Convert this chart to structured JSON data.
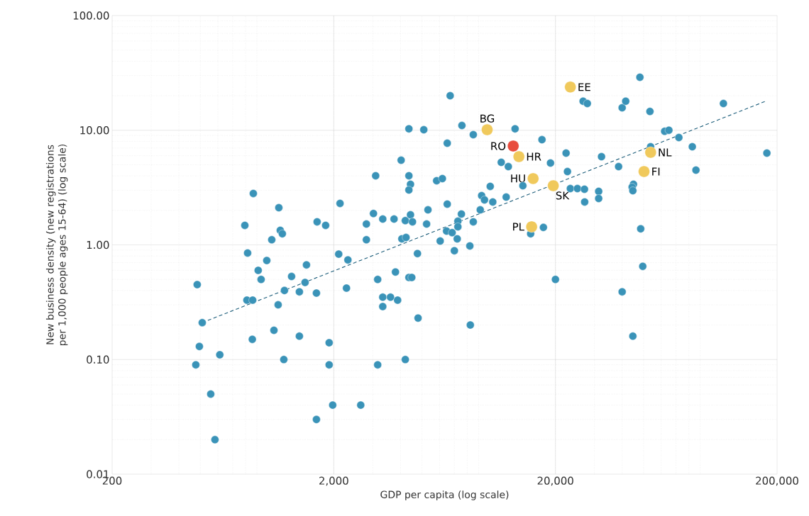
{
  "chart_data": {
    "type": "scatter",
    "xlabel": "GDP per capita (log scale)",
    "ylabel": "New business density (new registrations per 1,000 people ages 15-64) (log scale)",
    "log": "xy",
    "grid": true,
    "marker": "circle",
    "legend": false,
    "xlim": [
      200,
      200000
    ],
    "ylim": [
      0.01,
      100
    ],
    "xticks": [
      200,
      {
        "value": 2000,
        "label": "2,000"
      },
      {
        "value": 20000,
        "label": "20,000"
      },
      {
        "value": 200000,
        "label": "200,000"
      }
    ],
    "yticks": [
      {
        "value": 0.01,
        "label": "0.01"
      },
      {
        "value": 0.1,
        "label": "0.10"
      },
      {
        "value": 1,
        "label": "1.00"
      },
      {
        "value": 10,
        "label": "10.00"
      },
      {
        "value": 100,
        "label": "100.00"
      }
    ],
    "series": [
      {
        "color": "#3a93b8",
        "x": [
          484,
          510,
          495,
          477,
          557,
          612,
          582,
          794,
          817,
          867,
          811,
          861,
          858,
          912,
          940,
          997,
          1050,
          1074,
          1130,
          1122,
          1147,
          1172,
          1198,
          1190,
          1290,
          1399,
          1399,
          1484,
          1506,
          1670,
          1682,
          1670,
          1838,
          1906,
          1906,
          1978,
          2134,
          2105,
          2316,
          2282,
          2646,
          3020,
          3090,
          2806,
          2806,
          3155,
          3326,
          3326,
          3326,
          3155,
          3605,
          3740,
          3796,
          3882,
          4026,
          4055,
          4236,
          4204,
          4364,
          4364,
          4364,
          4204,
          4437,
          4364,
          4496,
          4437,
          4530,
          4770,
          4800,
          5094,
          5245,
          5320,
          5822,
          6180,
          6040,
          6455,
          6500,
          6500,
          6700,
          6840,
          7000,
          7210,
          7260,
          7260,
          7530,
          7570,
          8220,
          8260,
          8520,
          8520,
          9160,
          9290,
          9570,
          10160,
          10430,
          11390,
          11990,
          12260,
          13150,
          14260,
          15460,
          17390,
          17650,
          19000,
          20000,
          22340,
          22660,
          23350,
          25130,
          26660,
          27860,
          27040,
          27100,
          31340,
          31340,
          32280,
          38550,
          40000,
          41500,
          40000,
          44990,
          44370,
          44700,
          44700,
          48100,
          48500,
          49540,
          53380,
          53760,
          62200,
          65000,
          72100,
          82900,
          86100,
          114500,
          179900
        ],
        "values": [
          0.45,
          0.21,
          0.13,
          0.09,
          0.05,
          0.11,
          0.02,
          1.48,
          0.85,
          2.81,
          0.33,
          0.33,
          0.15,
          0.6,
          0.5,
          0.73,
          1.11,
          0.18,
          2.11,
          0.3,
          1.34,
          1.25,
          0.4,
          0.1,
          0.53,
          0.39,
          0.16,
          0.47,
          0.67,
          0.38,
          1.59,
          0.03,
          1.48,
          0.14,
          0.09,
          0.04,
          2.3,
          0.83,
          0.74,
          0.42,
          0.04,
          1.88,
          4.01,
          1.52,
          1.11,
          0.5,
          1.68,
          0.35,
          0.29,
          0.09,
          0.35,
          1.68,
          0.58,
          0.33,
          5.48,
          1.13,
          1.16,
          1.63,
          10.3,
          4.01,
          0.52,
          0.1,
          3.38,
          3.01,
          0.52,
          1.83,
          1.59,
          0.84,
          0.23,
          10.1,
          1.52,
          2.02,
          3.63,
          3.79,
          1.08,
          1.32,
          2.27,
          7.71,
          20.0,
          1.28,
          0.89,
          1.13,
          1.61,
          1.44,
          1.86,
          11.0,
          0.98,
          0.2,
          1.59,
          9.15,
          2.02,
          2.69,
          2.47,
          3.24,
          2.37,
          5.25,
          2.61,
          4.82,
          10.3,
          3.28,
          1.25,
          8.27,
          1.42,
          5.18,
          0.5,
          6.32,
          4.36,
          3.1,
          3.1,
          17.9,
          17.1,
          3.06,
          2.37,
          2.93,
          2.54,
          5.88,
          4.82,
          15.7,
          17.9,
          0.39,
          3.38,
          3.19,
          2.97,
          0.16,
          29.0,
          1.38,
          0.65,
          14.6,
          7.18,
          9.8,
          10.0,
          8.64,
          7.18,
          4.49,
          17.1,
          6.32
        ]
      },
      {
        "type": "line",
        "line_style": "dashed",
        "marker": "none",
        "color": "#1c5d7a",
        "x": [
          510,
          180000
        ],
        "values": [
          0.21,
          18.1
        ]
      },
      {
        "name": "BG",
        "color": "#f0c95c",
        "x": [
          9840
        ],
        "values": [
          10.1
        ]
      },
      {
        "name": "RO",
        "color": "#e84c3d",
        "x": [
          12900
        ],
        "values": [
          7.28
        ]
      },
      {
        "name": "HR",
        "color": "#f0c95c",
        "x": [
          13680
        ],
        "values": [
          5.89
        ]
      },
      {
        "name": "HU",
        "color": "#f0c95c",
        "x": [
          15860
        ],
        "values": [
          3.79
        ]
      },
      {
        "name": "SK",
        "color": "#f0c95c",
        "x": [
          19560
        ],
        "values": [
          3.28
        ]
      },
      {
        "name": "PL",
        "color": "#f0c95c",
        "x": [
          15620
        ],
        "values": [
          1.44
        ]
      },
      {
        "name": "EE",
        "color": "#f0c95c",
        "x": [
          23350
        ],
        "values": [
          23.8
        ]
      },
      {
        "name": "NL",
        "color": "#f0c95c",
        "x": [
          53760
        ],
        "values": [
          6.41
        ]
      },
      {
        "name": "FI",
        "color": "#f0c95c",
        "x": [
          50200
        ],
        "values": [
          4.36
        ]
      }
    ]
  }
}
